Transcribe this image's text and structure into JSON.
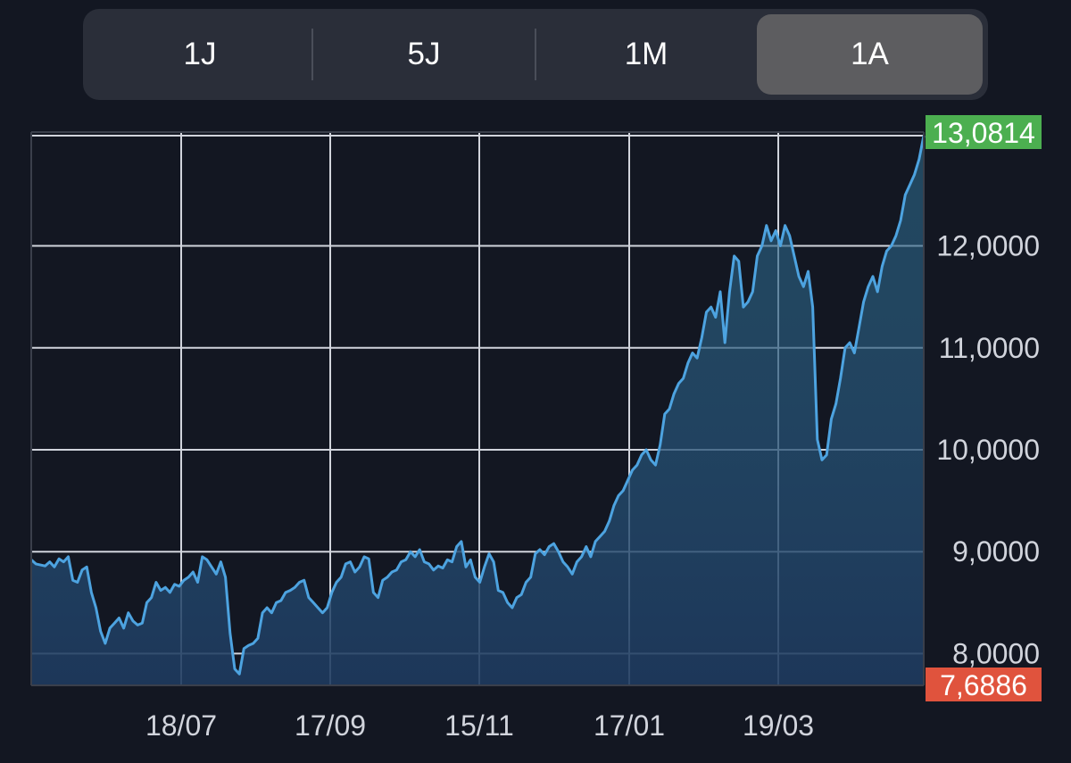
{
  "range_selector": {
    "tabs": [
      {
        "label": "1J",
        "active": false
      },
      {
        "label": "5J",
        "active": false
      },
      {
        "label": "1M",
        "active": false
      },
      {
        "label": "1A",
        "active": true
      }
    ]
  },
  "colors": {
    "background": "#131722",
    "line": "#4da3e0",
    "grid": "#d1d4dc",
    "high_badge": "#4caf50",
    "low_badge": "#e0533d"
  },
  "chart_data": {
    "type": "area",
    "title": "",
    "xlabel": "",
    "ylabel": "",
    "x_tick_labels": [
      "18/07",
      "17/09",
      "15/11",
      "17/01",
      "19/03"
    ],
    "y_tick_labels": [
      "8,0000",
      "9,0000",
      "10,0000",
      "11,0000",
      "12,0000"
    ],
    "y_ticks": [
      8,
      9,
      10,
      11,
      12
    ],
    "ylim": [
      7.6886,
      13.0814
    ],
    "grid": true,
    "high_badge": {
      "label": "13,0814",
      "value": 13.0814
    },
    "low_badge": {
      "label": "7,6886",
      "value": 7.6886
    },
    "series": [
      {
        "values": [
          8.92,
          8.88,
          8.87,
          8.86,
          8.9,
          8.85,
          8.93,
          8.9,
          8.95,
          8.72,
          8.7,
          8.82,
          8.85,
          8.6,
          8.45,
          8.22,
          8.1,
          8.25,
          8.3,
          8.35,
          8.25,
          8.4,
          8.32,
          8.28,
          8.3,
          8.5,
          8.55,
          8.7,
          8.62,
          8.65,
          8.6,
          8.68,
          8.66,
          8.72,
          8.75,
          8.8,
          8.7,
          8.95,
          8.92,
          8.85,
          8.78,
          8.9,
          8.75,
          8.2,
          7.85,
          7.8,
          8.05,
          8.08,
          8.1,
          8.15,
          8.4,
          8.45,
          8.4,
          8.5,
          8.52,
          8.6,
          8.62,
          8.65,
          8.7,
          8.72,
          8.55,
          8.5,
          8.45,
          8.4,
          8.45,
          8.6,
          8.7,
          8.75,
          8.88,
          8.9,
          8.8,
          8.85,
          8.95,
          8.93,
          8.6,
          8.55,
          8.72,
          8.75,
          8.8,
          8.82,
          8.9,
          8.92,
          9.0,
          8.95,
          9.02,
          8.9,
          8.88,
          8.82,
          8.86,
          8.84,
          8.92,
          8.9,
          9.05,
          9.1,
          8.85,
          8.92,
          8.75,
          8.7,
          8.85,
          8.98,
          8.9,
          8.62,
          8.6,
          8.5,
          8.45,
          8.55,
          8.58,
          8.7,
          8.75,
          8.98,
          9.02,
          8.97,
          9.05,
          9.08,
          9.0,
          8.9,
          8.85,
          8.78,
          8.9,
          8.95,
          9.05,
          8.95,
          9.1,
          9.15,
          9.2,
          9.3,
          9.45,
          9.55,
          9.6,
          9.7,
          9.8,
          9.85,
          9.95,
          10.0,
          9.9,
          9.85,
          10.05,
          10.35,
          10.4,
          10.55,
          10.65,
          10.7,
          10.85,
          10.95,
          10.9,
          11.1,
          11.35,
          11.4,
          11.3,
          11.55,
          11.05,
          11.55,
          11.9,
          11.85,
          11.4,
          11.45,
          11.55,
          11.9,
          12.0,
          12.2,
          12.05,
          12.15,
          12.0,
          12.2,
          12.1,
          11.9,
          11.7,
          11.6,
          11.75,
          11.4,
          10.1,
          9.9,
          9.95,
          10.3,
          10.45,
          10.7,
          11.0,
          11.05,
          10.95,
          11.2,
          11.45,
          11.6,
          11.7,
          11.55,
          11.8,
          11.95,
          12.0,
          12.1,
          12.25,
          12.5,
          12.6,
          12.7,
          12.85,
          13.08
        ]
      }
    ]
  }
}
